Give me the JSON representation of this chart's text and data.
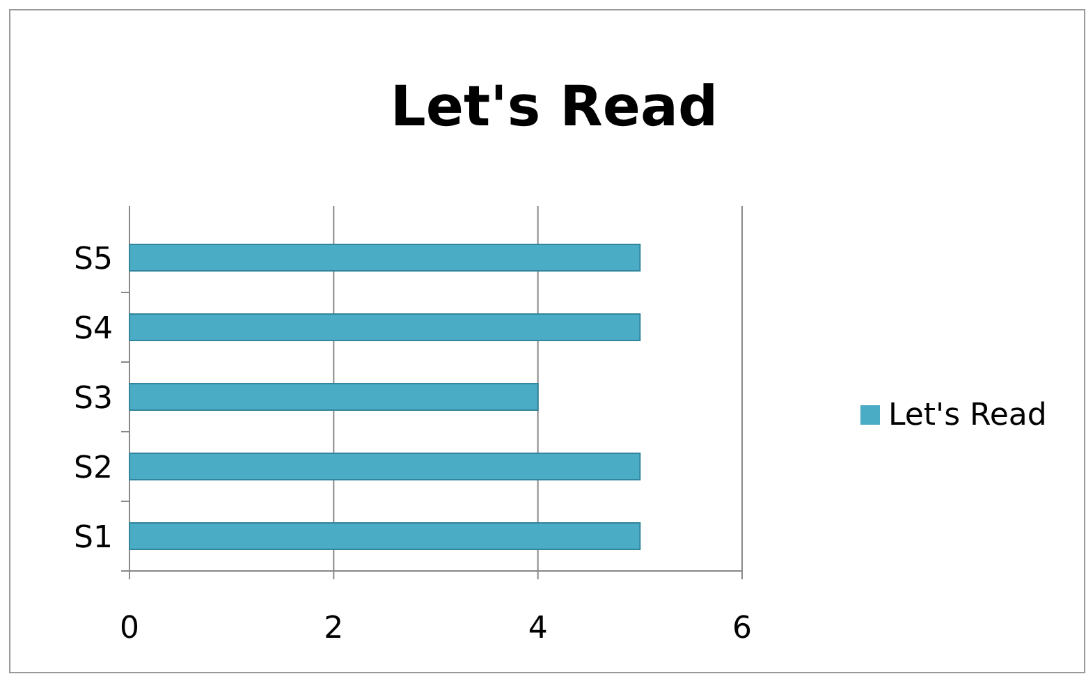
{
  "chart_data": {
    "type": "bar",
    "title": "Let's Read",
    "orientation": "horizontal",
    "categories": [
      "S5",
      "S4",
      "S3",
      "S2",
      "S1"
    ],
    "series": [
      {
        "name": "Let's Read",
        "color": "#4bacc6",
        "values": [
          5,
          5,
          4,
          5,
          5
        ]
      }
    ],
    "xlim": [
      0,
      6
    ],
    "xticks": [
      0,
      2,
      4,
      6
    ],
    "grid": "x",
    "legend": "right"
  }
}
